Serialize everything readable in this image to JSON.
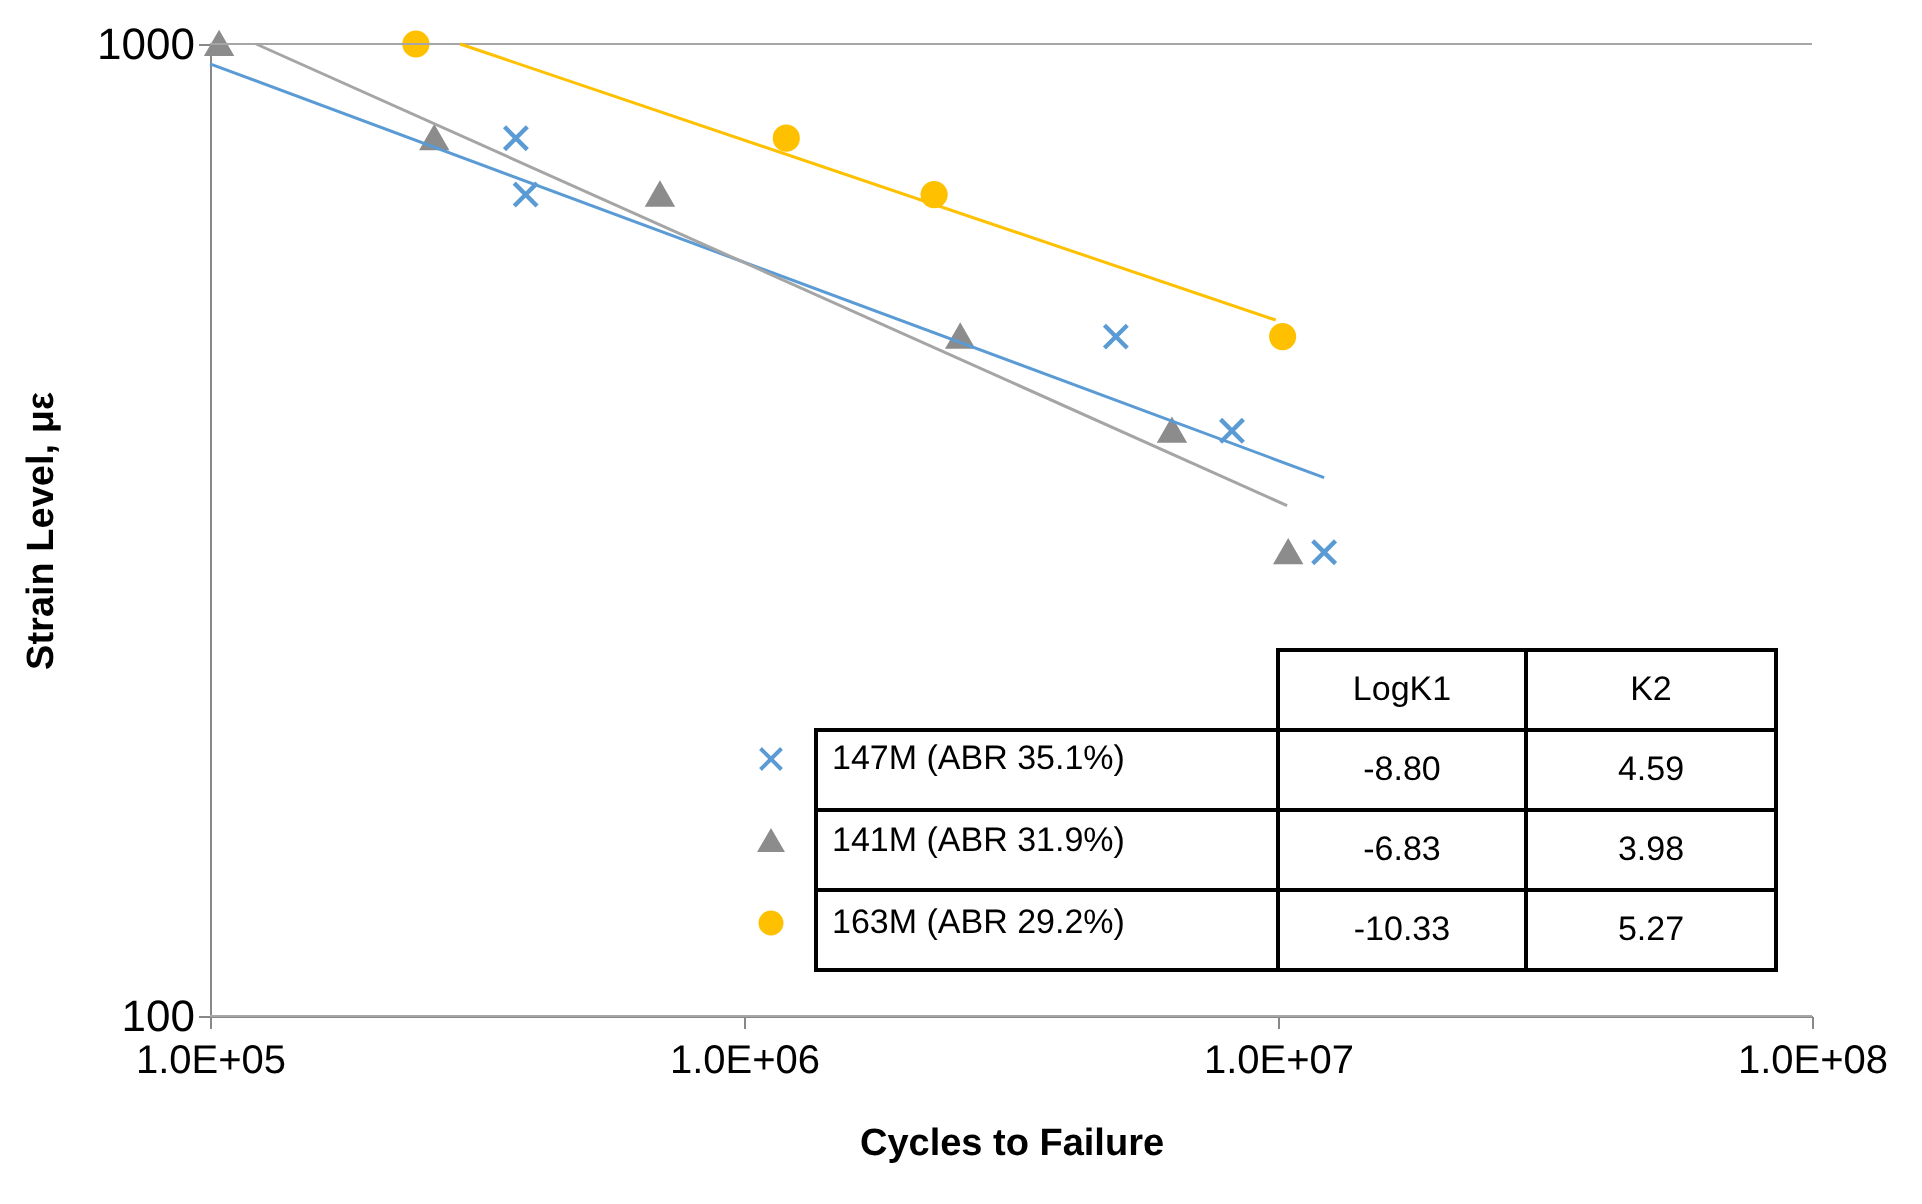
{
  "chart_data": {
    "type": "scatter",
    "xlabel": "Cycles to Failure",
    "ylabel": "Strain Level, με",
    "log": "xy",
    "grid": "y",
    "legend": "bottom right",
    "xlim": [
      100000,
      100000000
    ],
    "ylim": [
      100,
      1000
    ],
    "xticks": [
      {
        "value": 100000,
        "label": "1.0E+05"
      },
      {
        "value": 1000000,
        "label": "1.0E+06"
      },
      {
        "value": 10000000,
        "label": "1.0E+07"
      },
      {
        "value": 100000000,
        "label": "1.0E+08"
      }
    ],
    "yticks": [
      100,
      {
        "value": 1000,
        "label": "1000"
      }
    ],
    "series": [
      {
        "name": "147M (ABR 35.1%)",
        "marker": "cross",
        "color": "#5b9bd5",
        "x": [
          374000,
          390000,
          4970000,
          8200000,
          12200000
        ],
        "values": [
          800,
          700,
          500,
          400,
          300
        ]
      },
      {
        "name": "141M (ABR 31.9%)",
        "marker": "triangle",
        "color": "#8c8c8c",
        "x": [
          104000,
          263000,
          696000,
          2540000,
          6330000,
          10450000
        ],
        "values": [
          1000,
          800,
          700,
          500,
          400,
          300
        ]
      },
      {
        "name": "163M (ABR 29.2%)",
        "marker": "circle",
        "color": "#ffc000",
        "x": [
          243000,
          1200000,
          2270000,
          10200000
        ],
        "values": [
          1000,
          800,
          700,
          500
        ]
      },
      {
        "type": "line",
        "color": "#5b9bd5",
        "x": [
          100000,
          12200000
        ],
        "values": [
          954,
          358
        ]
      },
      {
        "type": "line",
        "color": "#a5a5a5",
        "x": [
          122000,
          10400000
        ],
        "values": [
          1000,
          335
        ]
      },
      {
        "type": "line",
        "color": "#ffc000",
        "x": [
          294000,
          9900000
        ],
        "values": [
          1000,
          520
        ]
      }
    ],
    "annotations": [
      "LogK1",
      "K2",
      "-8.80",
      "4.59",
      "-6.83",
      "3.98",
      "-10.33",
      "5.27"
    ]
  }
}
